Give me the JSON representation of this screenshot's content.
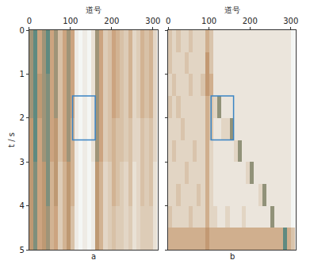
{
  "chart_data": [
    {
      "type": "heatmap",
      "title": "a",
      "xlabel": "道号",
      "ylabel": "t / s",
      "xlim": [
        0,
        312
      ],
      "xticks": [
        0,
        100,
        200,
        300
      ],
      "ylim": [
        5,
        0
      ],
      "yticks": [
        0,
        1,
        2,
        3,
        4,
        5
      ],
      "tick_labels": true,
      "x": [
        5,
        15,
        25,
        35,
        45,
        55,
        65,
        75,
        85,
        95,
        105,
        115,
        125,
        135,
        145,
        155,
        165,
        175,
        185,
        195,
        205,
        215,
        225,
        235,
        245,
        255,
        265,
        275,
        285,
        295,
        305
      ],
      "y": [
        0.5,
        1.5,
        2.5,
        3.5,
        4.5
      ],
      "z": [
        [
          0.6,
          0.7,
          0.5,
          0.6,
          0.7,
          0.5,
          0.6,
          0.4,
          0.5,
          0.6,
          0.5,
          0.2,
          0.15,
          0.2,
          0.15,
          0.25,
          0.6,
          0.5,
          0.35,
          0.4,
          0.5,
          0.45,
          0.4,
          0.35,
          0.45,
          0.3,
          0.35,
          0.45,
          0.4,
          0.45,
          0.3
        ],
        [
          0.6,
          0.7,
          0.55,
          0.6,
          0.65,
          0.5,
          0.6,
          0.4,
          0.5,
          0.6,
          0.5,
          0.2,
          0.15,
          0.2,
          0.15,
          0.25,
          0.6,
          0.5,
          0.35,
          0.4,
          0.5,
          0.45,
          0.4,
          0.35,
          0.45,
          0.3,
          0.35,
          0.45,
          0.4,
          0.45,
          0.3
        ],
        [
          0.55,
          0.7,
          0.5,
          0.6,
          0.65,
          0.5,
          0.55,
          0.4,
          0.5,
          0.6,
          0.45,
          0.2,
          0.15,
          0.2,
          0.15,
          0.25,
          0.6,
          0.5,
          0.35,
          0.4,
          0.45,
          0.4,
          0.4,
          0.35,
          0.4,
          0.3,
          0.3,
          0.4,
          0.35,
          0.4,
          0.3
        ],
        [
          0.55,
          0.65,
          0.5,
          0.55,
          0.65,
          0.45,
          0.55,
          0.35,
          0.45,
          0.55,
          0.45,
          0.2,
          0.15,
          0.2,
          0.15,
          0.2,
          0.55,
          0.45,
          0.3,
          0.35,
          0.45,
          0.4,
          0.35,
          0.3,
          0.4,
          0.25,
          0.3,
          0.4,
          0.35,
          0.4,
          0.25
        ],
        [
          0.55,
          0.65,
          0.5,
          0.55,
          0.6,
          0.45,
          0.5,
          0.35,
          0.45,
          0.55,
          0.4,
          0.2,
          0.15,
          0.2,
          0.15,
          0.2,
          0.55,
          0.45,
          0.3,
          0.35,
          0.4,
          0.35,
          0.35,
          0.3,
          0.35,
          0.25,
          0.3,
          0.35,
          0.35,
          0.35,
          0.25
        ]
      ],
      "annotations": [
        {
          "shape": "rect",
          "x0": 105,
          "x1": 160,
          "y0": 1.5,
          "y1": 2.5,
          "color": "#3a84c4"
        }
      ]
    },
    {
      "type": "heatmap",
      "title": "b",
      "xlabel": "道号",
      "xlim": [
        0,
        312
      ],
      "xticks": [
        0,
        100,
        200,
        300
      ],
      "ylim": [
        5,
        0
      ],
      "yticks": [
        0,
        1,
        2,
        3,
        4,
        5
      ],
      "tick_labels": "x",
      "x": [
        5,
        15,
        25,
        35,
        45,
        55,
        65,
        75,
        85,
        95,
        105,
        115,
        125,
        135,
        145,
        155,
        165,
        175,
        185,
        195,
        205,
        215,
        225,
        235,
        245,
        255,
        265,
        275,
        285,
        295,
        305
      ],
      "y": [
        0.25,
        0.75,
        1.25,
        1.75,
        2.25,
        2.75,
        3.25,
        3.75,
        4.25,
        4.75
      ],
      "z": [
        [
          0.55,
          0.5,
          0.55,
          0.5,
          0.5,
          0.55,
          0.5,
          0.5,
          0.5,
          0.6,
          0.55,
          0.45,
          0.45,
          0.45,
          0.45,
          0.45,
          0.45,
          0.45,
          0.45,
          0.45,
          0.45,
          0.45,
          0.45,
          0.45,
          0.45,
          0.45,
          0.45,
          0.45,
          0.45,
          0.45,
          0.4
        ],
        [
          0.55,
          0.5,
          0.5,
          0.5,
          0.55,
          0.5,
          0.5,
          0.5,
          0.5,
          0.65,
          0.55,
          0.45,
          0.45,
          0.45,
          0.45,
          0.45,
          0.45,
          0.45,
          0.45,
          0.45,
          0.45,
          0.45,
          0.45,
          0.45,
          0.45,
          0.45,
          0.45,
          0.45,
          0.45,
          0.45,
          0.4
        ],
        [
          0.5,
          0.55,
          0.5,
          0.5,
          0.5,
          0.55,
          0.5,
          0.5,
          0.55,
          0.65,
          0.6,
          0.45,
          0.45,
          0.45,
          0.45,
          0.45,
          0.45,
          0.45,
          0.45,
          0.45,
          0.45,
          0.45,
          0.45,
          0.45,
          0.45,
          0.45,
          0.45,
          0.45,
          0.45,
          0.45,
          0.4
        ],
        [
          0.55,
          0.5,
          0.55,
          0.5,
          0.5,
          0.5,
          0.5,
          0.5,
          0.5,
          0.6,
          0.55,
          0.5,
          0.7,
          0.45,
          0.45,
          0.45,
          0.45,
          0.45,
          0.45,
          0.45,
          0.45,
          0.45,
          0.45,
          0.45,
          0.45,
          0.45,
          0.45,
          0.45,
          0.45,
          0.45,
          0.4
        ],
        [
          0.5,
          0.5,
          0.5,
          0.55,
          0.5,
          0.5,
          0.5,
          0.5,
          0.5,
          0.6,
          0.55,
          0.45,
          0.45,
          0.5,
          0.5,
          0.7,
          0.45,
          0.45,
          0.45,
          0.45,
          0.45,
          0.45,
          0.45,
          0.45,
          0.45,
          0.45,
          0.45,
          0.45,
          0.45,
          0.45,
          0.4
        ],
        [
          0.5,
          0.55,
          0.5,
          0.5,
          0.5,
          0.5,
          0.55,
          0.5,
          0.5,
          0.6,
          0.5,
          0.45,
          0.45,
          0.45,
          0.45,
          0.45,
          0.5,
          0.7,
          0.45,
          0.45,
          0.45,
          0.45,
          0.45,
          0.45,
          0.45,
          0.45,
          0.45,
          0.45,
          0.45,
          0.45,
          0.4
        ],
        [
          0.5,
          0.5,
          0.5,
          0.5,
          0.55,
          0.5,
          0.5,
          0.5,
          0.5,
          0.6,
          0.5,
          0.45,
          0.45,
          0.45,
          0.45,
          0.45,
          0.45,
          0.45,
          0.45,
          0.5,
          0.7,
          0.45,
          0.45,
          0.45,
          0.45,
          0.45,
          0.45,
          0.45,
          0.45,
          0.45,
          0.4
        ],
        [
          0.5,
          0.5,
          0.55,
          0.5,
          0.5,
          0.5,
          0.5,
          0.55,
          0.5,
          0.6,
          0.5,
          0.45,
          0.45,
          0.45,
          0.45,
          0.45,
          0.45,
          0.45,
          0.45,
          0.45,
          0.45,
          0.45,
          0.5,
          0.7,
          0.45,
          0.45,
          0.45,
          0.45,
          0.45,
          0.45,
          0.4
        ],
        [
          0.55,
          0.5,
          0.5,
          0.5,
          0.5,
          0.55,
          0.5,
          0.5,
          0.5,
          0.6,
          0.5,
          0.5,
          0.45,
          0.45,
          0.5,
          0.45,
          0.45,
          0.45,
          0.5,
          0.45,
          0.45,
          0.45,
          0.45,
          0.45,
          0.45,
          0.7,
          0.45,
          0.45,
          0.45,
          0.45,
          0.4
        ],
        [
          0.6,
          0.6,
          0.6,
          0.6,
          0.6,
          0.6,
          0.6,
          0.6,
          0.6,
          0.65,
          0.6,
          0.6,
          0.6,
          0.6,
          0.6,
          0.6,
          0.6,
          0.6,
          0.6,
          0.6,
          0.6,
          0.6,
          0.6,
          0.6,
          0.6,
          0.6,
          0.6,
          0.6,
          0.75,
          0.6,
          0.55
        ]
      ],
      "annotations": [
        {
          "shape": "rect",
          "x0": 105,
          "x1": 160,
          "y0": 1.5,
          "y1": 2.5,
          "color": "#3a84c4"
        }
      ]
    }
  ]
}
